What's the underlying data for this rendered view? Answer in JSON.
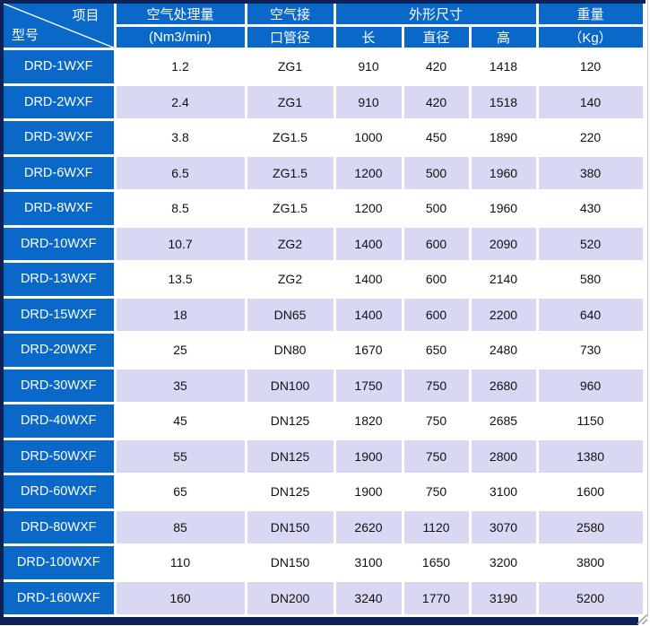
{
  "colors": {
    "header_blue": "#0A69C8",
    "row_alt_lavender": "#D8D8F2",
    "outer_border_navy": "#0D2257",
    "cell_text": "#111111",
    "header_text": "#FFFFFF"
  },
  "table": {
    "corner": {
      "top_right_label": "项目",
      "bottom_left_label": "型号"
    },
    "header": {
      "air_capacity_line1": "空气处理量",
      "air_capacity_line2": "(Nm3/min)",
      "air_port_line1": "空气接",
      "air_port_line2": "口管径",
      "dimensions_label": "外形尺寸",
      "dim_length": "长",
      "dim_diameter": "直径",
      "dim_height": "高",
      "weight_line1": "重量",
      "weight_line2": "（Kg）"
    },
    "columns": [
      "model",
      "capacity",
      "port",
      "length",
      "diameter",
      "height",
      "weight"
    ],
    "rows": [
      {
        "model": "DRD-1WXF",
        "capacity": "1.2",
        "port": "ZG1",
        "length": "910",
        "diameter": "420",
        "height": "1418",
        "weight": "120"
      },
      {
        "model": "DRD-2WXF",
        "capacity": "2.4",
        "port": "ZG1",
        "length": "910",
        "diameter": "420",
        "height": "1518",
        "weight": "140"
      },
      {
        "model": "DRD-3WXF",
        "capacity": "3.8",
        "port": "ZG1.5",
        "length": "1000",
        "diameter": "450",
        "height": "1890",
        "weight": "220"
      },
      {
        "model": "DRD-6WXF",
        "capacity": "6.5",
        "port": "ZG1.5",
        "length": "1200",
        "diameter": "500",
        "height": "1960",
        "weight": "380"
      },
      {
        "model": "DRD-8WXF",
        "capacity": "8.5",
        "port": "ZG1.5",
        "length": "1200",
        "diameter": "500",
        "height": "1960",
        "weight": "430"
      },
      {
        "model": "DRD-10WXF",
        "capacity": "10.7",
        "port": "ZG2",
        "length": "1400",
        "diameter": "600",
        "height": "2090",
        "weight": "520"
      },
      {
        "model": "DRD-13WXF",
        "capacity": "13.5",
        "port": "ZG2",
        "length": "1400",
        "diameter": "600",
        "height": "2140",
        "weight": "580"
      },
      {
        "model": "DRD-15WXF",
        "capacity": "18",
        "port": "DN65",
        "length": "1400",
        "diameter": "600",
        "height": "2200",
        "weight": "640"
      },
      {
        "model": "DRD-20WXF",
        "capacity": "25",
        "port": "DN80",
        "length": "1670",
        "diameter": "650",
        "height": "2480",
        "weight": "730"
      },
      {
        "model": "DRD-30WXF",
        "capacity": "35",
        "port": "DN100",
        "length": "1750",
        "diameter": "750",
        "height": "2680",
        "weight": "960"
      },
      {
        "model": "DRD-40WXF",
        "capacity": "45",
        "port": "DN125",
        "length": "1820",
        "diameter": "750",
        "height": "2685",
        "weight": "1150"
      },
      {
        "model": "DRD-50WXF",
        "capacity": "55",
        "port": "DN125",
        "length": "1900",
        "diameter": "750",
        "height": "2800",
        "weight": "1380"
      },
      {
        "model": "DRD-60WXF",
        "capacity": "65",
        "port": "DN125",
        "length": "1900",
        "diameter": "750",
        "height": "3100",
        "weight": "1600"
      },
      {
        "model": "DRD-80WXF",
        "capacity": "85",
        "port": "DN150",
        "length": "2620",
        "diameter": "1120",
        "height": "3070",
        "weight": "2580"
      },
      {
        "model": "DRD-100WXF",
        "capacity": "110",
        "port": "DN150",
        "length": "3100",
        "diameter": "1650",
        "height": "3200",
        "weight": "3800"
      },
      {
        "model": "DRD-160WXF",
        "capacity": "160",
        "port": "DN200",
        "length": "3240",
        "diameter": "1770",
        "height": "3190",
        "weight": "5200"
      }
    ]
  }
}
